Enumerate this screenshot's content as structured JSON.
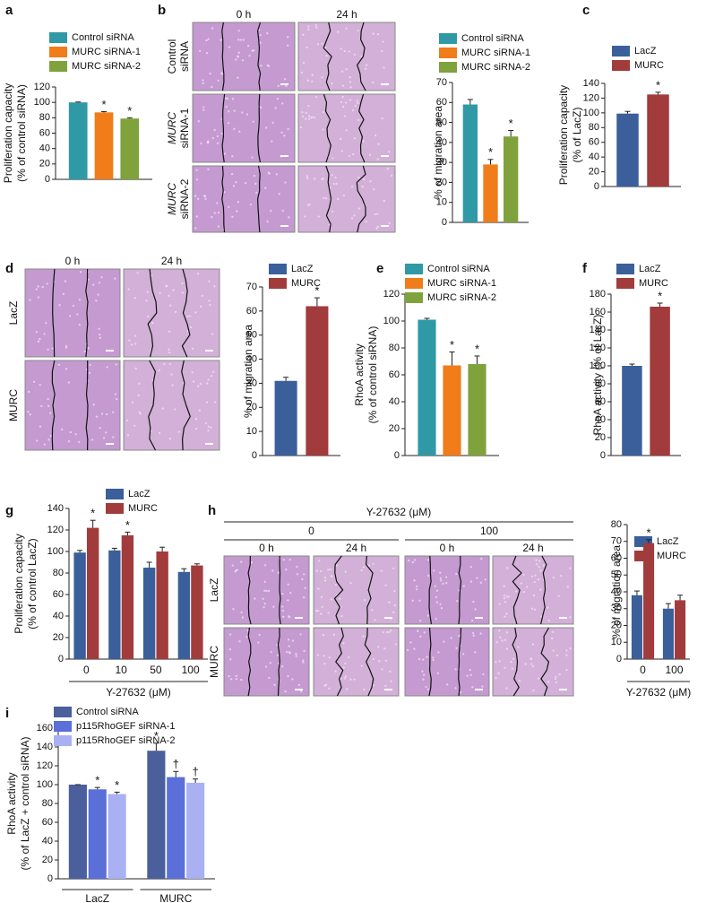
{
  "chart_data": [
    {
      "type": "bar",
      "panel": "a",
      "ylabel": [
        "Proliferation capacity",
        "(% of control siRNA)"
      ],
      "ylim": [
        0,
        120
      ],
      "yticks": [
        0,
        20,
        40,
        60,
        80,
        100,
        120
      ],
      "series": [
        {
          "name": "Control siRNA",
          "color": "#2f9aa6",
          "values": [
            100
          ],
          "errors": [
            0.5
          ],
          "significance": [
            null
          ]
        },
        {
          "name": "MURC siRNA-1",
          "color": "#f07c1a",
          "values": [
            87
          ],
          "errors": [
            1
          ],
          "significance": [
            "*"
          ]
        },
        {
          "name": "MURC siRNA-2",
          "color": "#7fa23c",
          "values": [
            79
          ],
          "errors": [
            1
          ],
          "significance": [
            "*"
          ]
        }
      ]
    },
    {
      "type": "bar",
      "panel": "b",
      "ylabel": [
        "% of migration area"
      ],
      "ylim": [
        0,
        70
      ],
      "yticks": [
        0,
        10,
        20,
        30,
        40,
        50,
        60,
        70
      ],
      "series": [
        {
          "name": "Control siRNA",
          "color": "#2f9aa6",
          "values": [
            59
          ],
          "errors": [
            2.5
          ],
          "significance": [
            null
          ]
        },
        {
          "name": "MURC siRNA-1",
          "color": "#f07c1a",
          "values": [
            29
          ],
          "errors": [
            2.5
          ],
          "significance": [
            "*"
          ]
        },
        {
          "name": "MURC siRNA-2",
          "color": "#7fa23c",
          "values": [
            43
          ],
          "errors": [
            3
          ],
          "significance": [
            "*"
          ]
        }
      ]
    },
    {
      "type": "bar",
      "panel": "c",
      "ylabel": [
        "Proliferation capacity",
        "(% of LacZ)"
      ],
      "ylim": [
        0,
        140
      ],
      "yticks": [
        0,
        20,
        40,
        60,
        80,
        100,
        120,
        140
      ],
      "series": [
        {
          "name": "LacZ",
          "color": "#3b5f9b",
          "values": [
            99
          ],
          "errors": [
            3
          ],
          "significance": [
            null
          ]
        },
        {
          "name": "MURC",
          "color": "#a23b3b",
          "values": [
            125
          ],
          "errors": [
            3
          ],
          "significance": [
            "*"
          ]
        }
      ]
    },
    {
      "type": "bar",
      "panel": "d",
      "ylabel": [
        "% of migration area"
      ],
      "ylim": [
        0,
        70
      ],
      "yticks": [
        0,
        10,
        20,
        30,
        40,
        50,
        60,
        70
      ],
      "series": [
        {
          "name": "LacZ",
          "color": "#3b5f9b",
          "values": [
            31
          ],
          "errors": [
            1.5
          ],
          "significance": [
            null
          ]
        },
        {
          "name": "MURC",
          "color": "#a23b3b",
          "values": [
            62
          ],
          "errors": [
            3.5
          ],
          "significance": [
            "*"
          ]
        }
      ]
    },
    {
      "type": "bar",
      "panel": "e",
      "ylabel": [
        "RhoA activity",
        "(% of control siRNA)"
      ],
      "ylim": [
        0,
        120
      ],
      "yticks": [
        0,
        20,
        40,
        60,
        80,
        100,
        120
      ],
      "series": [
        {
          "name": "Control siRNA",
          "color": "#2f9aa6",
          "values": [
            101
          ],
          "errors": [
            1
          ],
          "significance": [
            null
          ]
        },
        {
          "name": "MURC siRNA-1",
          "color": "#f07c1a",
          "values": [
            67
          ],
          "errors": [
            10
          ],
          "significance": [
            "*"
          ]
        },
        {
          "name": "MURC siRNA-2",
          "color": "#7fa23c",
          "values": [
            68
          ],
          "errors": [
            6
          ],
          "significance": [
            "*"
          ]
        }
      ]
    },
    {
      "type": "bar",
      "panel": "f",
      "ylabel": [
        "RhoA activity (% of LacZ)"
      ],
      "ylim": [
        0,
        180
      ],
      "yticks": [
        0,
        20,
        40,
        60,
        80,
        100,
        120,
        140,
        160,
        180
      ],
      "series": [
        {
          "name": "LacZ",
          "color": "#3b5f9b",
          "values": [
            100
          ],
          "errors": [
            2
          ],
          "significance": [
            null
          ]
        },
        {
          "name": "MURC",
          "color": "#a23b3b",
          "values": [
            166
          ],
          "errors": [
            4
          ],
          "significance": [
            "*"
          ]
        }
      ]
    },
    {
      "type": "bar",
      "panel": "g",
      "ylabel": [
        "Proliferation capacity",
        "(% of control LacZ)"
      ],
      "xlabel": "Y-27632 (μM)",
      "categories": [
        "0",
        "10",
        "50",
        "100"
      ],
      "ylim": [
        0,
        140
      ],
      "yticks": [
        0,
        20,
        40,
        60,
        80,
        100,
        120,
        140
      ],
      "series": [
        {
          "name": "LacZ",
          "color": "#3b5f9b",
          "values": [
            99,
            101,
            85,
            81
          ],
          "errors": [
            2,
            2,
            5,
            3
          ],
          "significance": [
            null,
            null,
            null,
            null
          ]
        },
        {
          "name": "MURC",
          "color": "#a23b3b",
          "values": [
            122,
            115,
            100,
            87
          ],
          "errors": [
            7,
            3,
            4,
            1.5
          ],
          "significance": [
            "*",
            "*",
            null,
            null
          ]
        }
      ]
    },
    {
      "type": "bar",
      "panel": "h",
      "ylabel": [
        "% of migration area"
      ],
      "xlabel": "Y-27632 (μM)",
      "categories": [
        "0",
        "100"
      ],
      "ylim": [
        0,
        80
      ],
      "yticks": [
        0,
        10,
        20,
        30,
        40,
        50,
        60,
        70,
        80
      ],
      "series": [
        {
          "name": "LacZ",
          "color": "#3b5f9b",
          "values": [
            38,
            30
          ],
          "errors": [
            2.5,
            3
          ],
          "significance": [
            null,
            null
          ]
        },
        {
          "name": "MURC",
          "color": "#a23b3b",
          "values": [
            69,
            35
          ],
          "errors": [
            2,
            3
          ],
          "significance": [
            "*",
            null
          ]
        }
      ]
    },
    {
      "type": "bar",
      "panel": "i",
      "ylabel": [
        "RhoA activity",
        "(% of LacZ + control siRNA)"
      ],
      "categories": [
        "LacZ",
        "MURC"
      ],
      "ylim": [
        0,
        160
      ],
      "yticks": [
        0,
        20,
        40,
        60,
        80,
        100,
        120,
        140,
        160
      ],
      "series": [
        {
          "name": "Control siRNA",
          "color": "#4a5f9c",
          "values": [
            100,
            136
          ],
          "errors": [
            0,
            8
          ],
          "significance": [
            null,
            "*"
          ]
        },
        {
          "name": "p115RhoGEF siRNA-1",
          "color": "#5a6fd8",
          "values": [
            95,
            108
          ],
          "errors": [
            2,
            6
          ],
          "significance": [
            "*",
            "†"
          ]
        },
        {
          "name": "p115RhoGEF siRNA-2",
          "color": "#a9b1f2",
          "values": [
            90,
            102
          ],
          "errors": [
            2,
            4
          ],
          "significance": [
            "*",
            "†"
          ]
        }
      ]
    }
  ],
  "micrographs": [
    {
      "columns": [
        "0 h",
        "24 h"
      ],
      "rows": [
        [
          "Control",
          "siRNA"
        ],
        [
          "MURC",
          "siRNA-1"
        ],
        [
          "MURC",
          "siRNA-2"
        ]
      ]
    },
    {
      "columns": [
        "0 h",
        "24 h"
      ],
      "rows": [
        [
          "LacZ"
        ],
        [
          "MURC"
        ]
      ]
    },
    {
      "title": "Y-27632 (μM)",
      "groups": [
        "0",
        "100"
      ],
      "columns": [
        "0 h",
        "24 h",
        "0 h",
        "24 h"
      ],
      "rows": [
        [
          "LacZ"
        ],
        [
          "MURC"
        ]
      ]
    }
  ]
}
